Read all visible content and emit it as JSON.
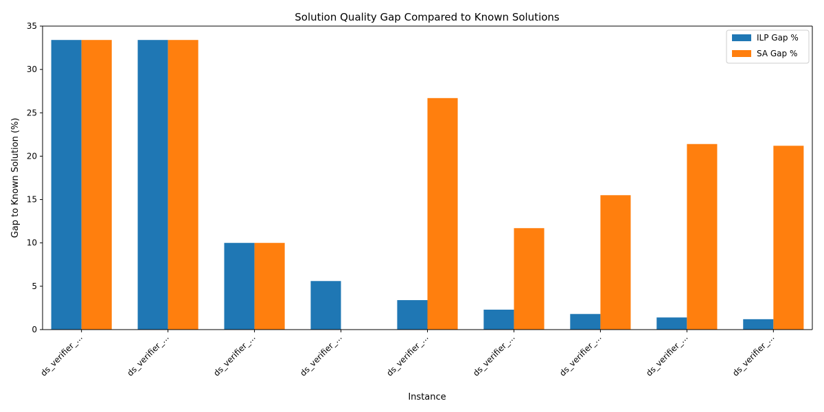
{
  "chart_data": {
    "type": "bar",
    "title": "Solution Quality Gap Compared to Known Solutions",
    "xlabel": "Instance",
    "ylabel": "Gap to Known Solution (%)",
    "ylim": [
      0,
      35
    ],
    "yticks": [
      0,
      5,
      10,
      15,
      20,
      25,
      30,
      35
    ],
    "categories": [
      "ds_verifier_...",
      "ds_verifier_...",
      "ds_verifier_...",
      "ds_verifier_...",
      "ds_verifier_...",
      "ds_verifier_...",
      "ds_verifier_...",
      "ds_verifier_...",
      "ds_verifier_..."
    ],
    "series": [
      {
        "name": "ILP Gap %",
        "color": "#1f77b4",
        "values": [
          33.4,
          33.4,
          10.0,
          5.6,
          3.4,
          2.3,
          1.8,
          1.4,
          1.2
        ]
      },
      {
        "name": "SA Gap %",
        "color": "#ff7f0e",
        "values": [
          33.4,
          33.4,
          10.0,
          0.0,
          26.7,
          11.7,
          15.5,
          21.4,
          21.2
        ]
      }
    ],
    "legend_position": "top-right",
    "grid": false
  }
}
